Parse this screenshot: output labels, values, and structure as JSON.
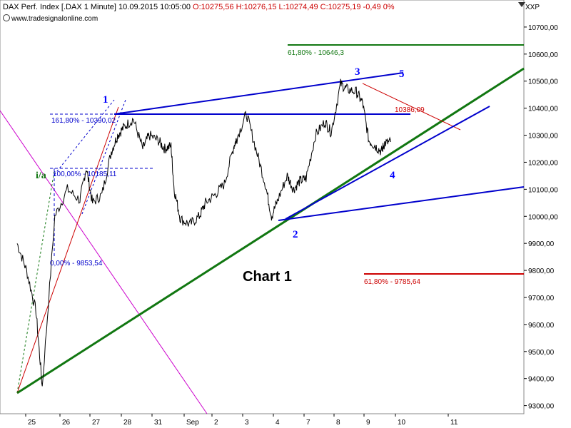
{
  "header": {
    "instrument": "DAX Perf. Index [.DAX",
    "interval": "1 Minute]",
    "datetime": "10.09.2015 10:05:00",
    "ohlc": "O:10275,56 H:10276,15 L:10274,49 C:10275,19 -0,49 0%"
  },
  "source": "www.tradesignalonline.com",
  "symbol": "XXP",
  "colors": {
    "price": "#000000",
    "blue": "#0000cc",
    "green": "#117711",
    "red": "#cc0000",
    "magenta": "#cc00cc",
    "text_blue": "#0000ff"
  },
  "chart_data": {
    "type": "line",
    "title": "Chart 1",
    "ylim": [
      9270,
      10800
    ],
    "yticks": [
      "9300,00",
      "9400,00",
      "9500,00",
      "9600,00",
      "9700,00",
      "9800,00",
      "9900,00",
      "10000,00",
      "10100,00",
      "10200,00",
      "10300,00",
      "10400,00",
      "10500,00",
      "10600,00",
      "10700,00"
    ],
    "xticks": [
      "25",
      "26",
      "27",
      "28",
      "31",
      "Sep",
      "2",
      "3",
      "4",
      "7",
      "8",
      "9",
      "10",
      "11"
    ],
    "series": [
      {
        "x": [
          0,
          0.3,
          0.6,
          0.8,
          1.2,
          1.6,
          2.0,
          2.2,
          2.4,
          2.7,
          3.0,
          3.2,
          3.4,
          3.7,
          4.0,
          4.2,
          4.5,
          4.7,
          4.9,
          5.0,
          5.2,
          5.5,
          5.8,
          6.0,
          6.3,
          6.6,
          6.9,
          7.0,
          7.3,
          7.6,
          7.9,
          8.1,
          8.3,
          8.6,
          8.8,
          9.0,
          9.2,
          9.5,
          9.8,
          10.0,
          10.3,
          10.5,
          10.8,
          11.0,
          11.2,
          11.4,
          11.6,
          11.7,
          11.9
        ],
        "y": [
          9900,
          9800,
          9650,
          9370,
          10000,
          10100,
          10060,
          10180,
          10050,
          10080,
          10240,
          10300,
          10330,
          10360,
          10250,
          10300,
          10280,
          10250,
          10260,
          10100,
          9990,
          9970,
          10000,
          10050,
          10080,
          10120,
          10260,
          10290,
          10380,
          10250,
          10120,
          10000,
          10060,
          10150,
          10100,
          10130,
          10140,
          10300,
          10350,
          10310,
          10490,
          10470,
          10460,
          10420,
          10280,
          10260,
          10240,
          10270,
          10275
        ]
      }
    ],
    "annotations": {
      "waves": [
        "1",
        "2",
        "3",
        "4",
        "5",
        "i/a"
      ],
      "fib_levels": [
        "161,80% - 10390,02",
        "100,00% - 10185,11",
        "0,00% - 9853,54",
        "61,80% - 10646,3",
        "10386,09",
        "61,80% - 9785,64"
      ]
    }
  }
}
